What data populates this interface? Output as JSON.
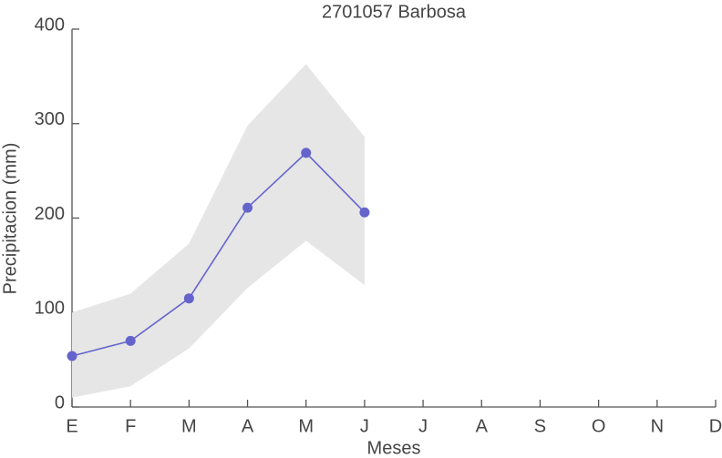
{
  "chart_data": {
    "type": "line",
    "title": "2701057 Barbosa",
    "x_label": "Meses",
    "y_label": "Precipitacion (mm)",
    "categories": [
      "E",
      "F",
      "M",
      "A",
      "M",
      "J",
      "J",
      "A",
      "S",
      "O",
      "N",
      "D"
    ],
    "series": [
      {
        "color": "#6464cc",
        "values": [
          54,
          70,
          115,
          211,
          269,
          206,
          null,
          null,
          null,
          null,
          null,
          null
        ]
      }
    ],
    "band": {
      "color": "#e6e6e6",
      "upper": [
        100,
        120,
        173,
        298,
        363,
        286,
        null,
        null,
        null,
        null,
        null,
        null
      ],
      "lower": [
        10,
        22,
        62,
        126,
        176,
        129,
        null,
        null,
        null,
        null,
        null,
        null
      ]
    },
    "ylim": [
      0,
      400
    ],
    "yticks": [
      0,
      100,
      200,
      300,
      400
    ],
    "grid": false
  }
}
